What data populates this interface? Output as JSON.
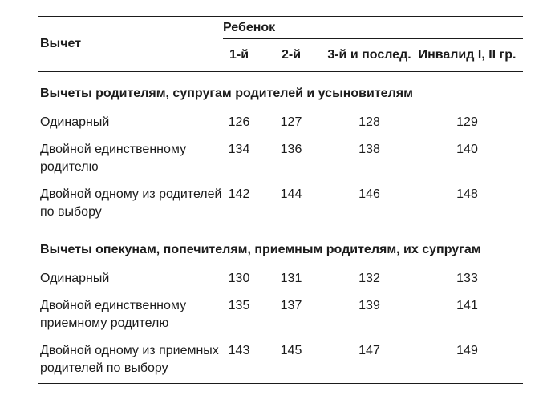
{
  "page": {
    "background": "#ffffff",
    "text_color": "#1b1b1b",
    "rule_color": "#1b1b1b"
  },
  "table": {
    "corner_header": "Вычет",
    "group_header": "Ребенок",
    "columns": [
      "1-й",
      "2-й",
      "3-й и послед.",
      "Инвалид I, II гр."
    ],
    "sections": [
      {
        "title": "Вычеты родителям, супругам родителей и усыновителям",
        "rows": [
          {
            "label": "Одинарный",
            "values": [
              "126",
              "127",
              "128",
              "129"
            ]
          },
          {
            "label": "Двойной единственному\nродителю",
            "values": [
              "134",
              "136",
              "138",
              "140"
            ]
          },
          {
            "label": "Двойной одному из родителей\nпо выбору",
            "values": [
              "142",
              "144",
              "146",
              "148"
            ]
          }
        ]
      },
      {
        "title": "Вычеты опекунам, попечителям, приемным родителям, их супругам",
        "rows": [
          {
            "label": "Одинарный",
            "values": [
              "130",
              "131",
              "132",
              "133"
            ]
          },
          {
            "label": "Двойной единственному\nприемному родителю",
            "values": [
              "135",
              "137",
              "139",
              "141"
            ]
          },
          {
            "label": "Двойной одному из приемных\nродителей по выбору",
            "values": [
              "143",
              "145",
              "147",
              "149"
            ]
          }
        ]
      }
    ]
  }
}
